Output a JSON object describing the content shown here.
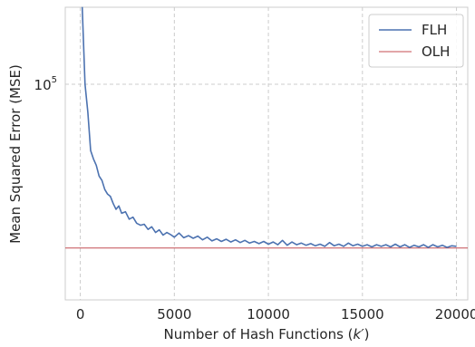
{
  "chart_data": {
    "type": "line",
    "title": "",
    "xlabel": "Number of Hash Functions (k′)",
    "ylabel": "Mean Squared Error (MSE)",
    "xlim": [
      -800,
      20600
    ],
    "ylim_log10": [
      4.72,
      5.1
    ],
    "y_scale": "log",
    "grid": true,
    "grid_style": "dashed",
    "legend_position": "top-right",
    "x_ticks": [
      {
        "value": 0,
        "label": "0"
      },
      {
        "value": 5000,
        "label": "5000"
      },
      {
        "value": 10000,
        "label": "10000"
      },
      {
        "value": 15000,
        "label": "15000"
      },
      {
        "value": 20000,
        "label": "20000"
      }
    ],
    "y_ticks": [
      {
        "value": 100000,
        "label_base": "10",
        "label_exp": "5"
      }
    ],
    "series": [
      {
        "name": "FLH",
        "color": "#4c72b0",
        "points": [
          [
            100,
            126000
          ],
          [
            250,
            100000
          ],
          [
            400,
            92000
          ],
          [
            550,
            82000
          ],
          [
            700,
            80000
          ],
          [
            850,
            78500
          ],
          [
            1000,
            76000
          ],
          [
            1150,
            75000
          ],
          [
            1300,
            73000
          ],
          [
            1450,
            72000
          ],
          [
            1600,
            71500
          ],
          [
            1750,
            70000
          ],
          [
            1900,
            68800
          ],
          [
            2050,
            69500
          ],
          [
            2200,
            68000
          ],
          [
            2400,
            68300
          ],
          [
            2600,
            66800
          ],
          [
            2800,
            67200
          ],
          [
            3000,
            66000
          ],
          [
            3200,
            65600
          ],
          [
            3400,
            65800
          ],
          [
            3600,
            64800
          ],
          [
            3800,
            65300
          ],
          [
            4000,
            64200
          ],
          [
            4200,
            64700
          ],
          [
            4400,
            63700
          ],
          [
            4600,
            64200
          ],
          [
            4800,
            63800
          ],
          [
            5000,
            63300
          ],
          [
            5250,
            64100
          ],
          [
            5500,
            63200
          ],
          [
            5750,
            63600
          ],
          [
            6000,
            63100
          ],
          [
            6250,
            63500
          ],
          [
            6500,
            62800
          ],
          [
            6750,
            63300
          ],
          [
            7000,
            62600
          ],
          [
            7250,
            63000
          ],
          [
            7500,
            62500
          ],
          [
            7750,
            62900
          ],
          [
            8000,
            62400
          ],
          [
            8250,
            62800
          ],
          [
            8500,
            62300
          ],
          [
            8750,
            62700
          ],
          [
            9000,
            62200
          ],
          [
            9250,
            62500
          ],
          [
            9500,
            62100
          ],
          [
            9750,
            62500
          ],
          [
            10000,
            62000
          ],
          [
            10250,
            62400
          ],
          [
            10500,
            61900
          ],
          [
            10750,
            62700
          ],
          [
            11000,
            61800
          ],
          [
            11250,
            62400
          ],
          [
            11500,
            61900
          ],
          [
            11750,
            62200
          ],
          [
            12000,
            61800
          ],
          [
            12250,
            62100
          ],
          [
            12500,
            61700
          ],
          [
            12750,
            62000
          ],
          [
            13000,
            61600
          ],
          [
            13250,
            62300
          ],
          [
            13500,
            61700
          ],
          [
            13750,
            62000
          ],
          [
            14000,
            61600
          ],
          [
            14250,
            62200
          ],
          [
            14500,
            61700
          ],
          [
            14750,
            62000
          ],
          [
            15000,
            61600
          ],
          [
            15250,
            61900
          ],
          [
            15500,
            61500
          ],
          [
            15750,
            61900
          ],
          [
            16000,
            61600
          ],
          [
            16250,
            61900
          ],
          [
            16500,
            61500
          ],
          [
            16750,
            62000
          ],
          [
            17000,
            61500
          ],
          [
            17250,
            61900
          ],
          [
            17500,
            61400
          ],
          [
            17750,
            61800
          ],
          [
            18000,
            61500
          ],
          [
            18250,
            61900
          ],
          [
            18500,
            61400
          ],
          [
            18750,
            61900
          ],
          [
            19000,
            61500
          ],
          [
            19250,
            61800
          ],
          [
            19500,
            61400
          ],
          [
            19750,
            61700
          ],
          [
            20000,
            61600
          ]
        ]
      },
      {
        "name": "OLH",
        "color": "#c44e52",
        "points": [
          [
            -800,
            61300
          ],
          [
            20600,
            61300
          ]
        ]
      }
    ]
  }
}
